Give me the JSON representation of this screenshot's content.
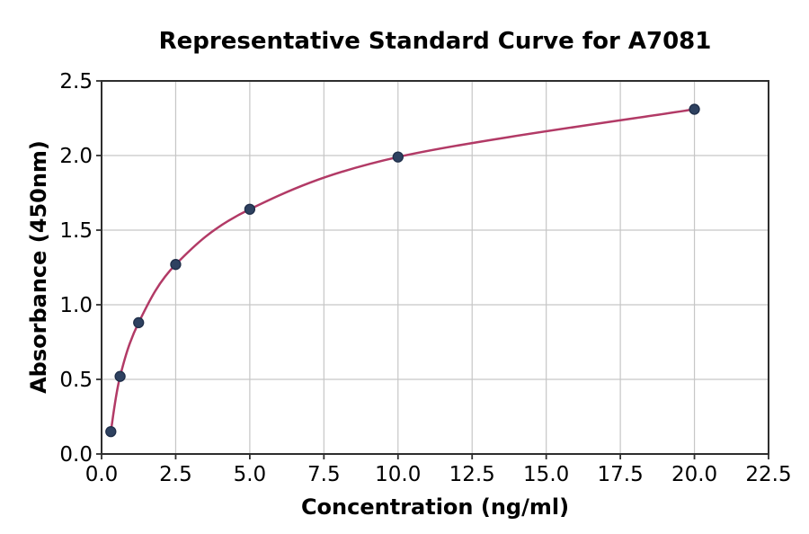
{
  "chart_data": {
    "type": "scatter",
    "title": "Representative Standard Curve for A7081",
    "xlabel": "Concentration (ng/ml)",
    "ylabel": "Absorbance (450nm)",
    "x": [
      0.3125,
      0.625,
      1.25,
      2.5,
      5,
      10,
      20
    ],
    "y": [
      0.15,
      0.52,
      0.88,
      1.27,
      1.64,
      1.99,
      2.31
    ],
    "curve_through_points": true,
    "xlim": [
      0,
      22.5
    ],
    "ylim": [
      0,
      2.5
    ],
    "xticks": [
      0,
      2.5,
      5,
      7.5,
      10,
      12.5,
      15,
      17.5,
      20,
      22.5
    ],
    "yticks": [
      0,
      0.5,
      1,
      1.5,
      2,
      2.5
    ],
    "tick_decimals": 1,
    "grid": true,
    "legend_position": "none",
    "colors": {
      "line": "#b23a66",
      "marker_fill": "#2e4160",
      "marker_edge": "#1f2e49",
      "grid": "#c6c6c6",
      "axis": "#2e2e2e",
      "text": "#000000"
    }
  }
}
